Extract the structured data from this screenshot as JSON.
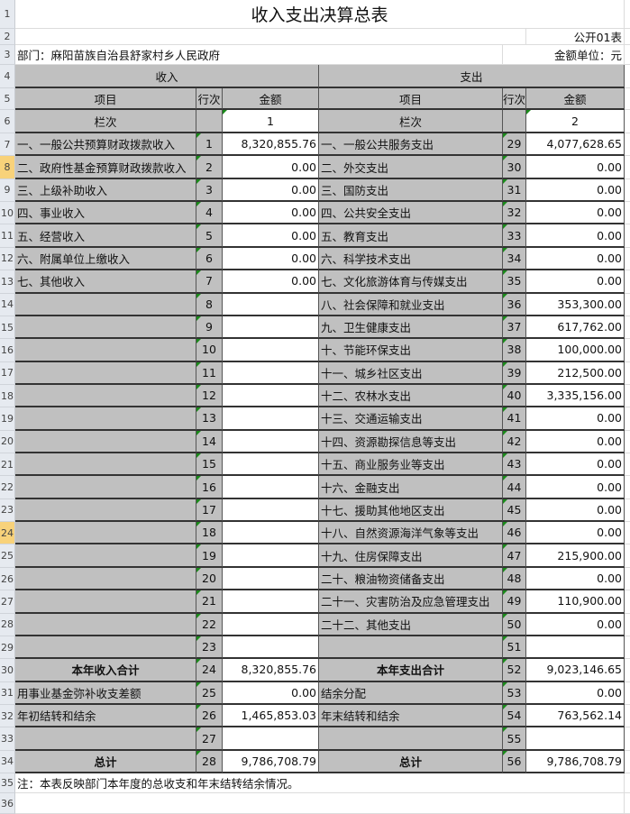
{
  "title": "收入支出决算总表",
  "form_code": "公开01表",
  "department": "部门：麻阳苗族自治县舒家村乡人民政府",
  "unit": "金额单位：元",
  "headers": {
    "income": "收入",
    "expense": "支出",
    "item": "项目",
    "line": "行次",
    "amount": "金额",
    "column": "栏次",
    "col1": "1",
    "col2": "2"
  },
  "selected_rows": [
    8,
    24
  ],
  "rows": [
    {
      "r": 7,
      "inc": [
        "一、一般公共预算财政拨款收入",
        "1",
        "8,320,855.76"
      ],
      "exp": [
        "一、一般公共服务支出",
        "29",
        "4,077,628.65"
      ]
    },
    {
      "r": 8,
      "inc": [
        "二、政府性基金预算财政拨款收入",
        "2",
        "0.00"
      ],
      "exp": [
        "二、外交支出",
        "30",
        "0.00"
      ]
    },
    {
      "r": 9,
      "inc": [
        "三、上级补助收入",
        "3",
        "0.00"
      ],
      "exp": [
        "三、国防支出",
        "31",
        "0.00"
      ]
    },
    {
      "r": 10,
      "inc": [
        "四、事业收入",
        "4",
        "0.00"
      ],
      "exp": [
        "四、公共安全支出",
        "32",
        "0.00"
      ]
    },
    {
      "r": 11,
      "inc": [
        "五、经营收入",
        "5",
        "0.00"
      ],
      "exp": [
        "五、教育支出",
        "33",
        "0.00"
      ]
    },
    {
      "r": 12,
      "inc": [
        "六、附属单位上缴收入",
        "6",
        "0.00"
      ],
      "exp": [
        "六、科学技术支出",
        "34",
        "0.00"
      ]
    },
    {
      "r": 13,
      "inc": [
        "七、其他收入",
        "7",
        "0.00"
      ],
      "exp": [
        "七、文化旅游体育与传媒支出",
        "35",
        "0.00"
      ]
    },
    {
      "r": 14,
      "inc": [
        "",
        "8",
        ""
      ],
      "exp": [
        "八、社会保障和就业支出",
        "36",
        "353,300.00"
      ]
    },
    {
      "r": 15,
      "inc": [
        "",
        "9",
        ""
      ],
      "exp": [
        "九、卫生健康支出",
        "37",
        "617,762.00"
      ]
    },
    {
      "r": 16,
      "inc": [
        "",
        "10",
        ""
      ],
      "exp": [
        "十、节能环保支出",
        "38",
        "100,000.00"
      ]
    },
    {
      "r": 17,
      "inc": [
        "",
        "11",
        ""
      ],
      "exp": [
        "十一、城乡社区支出",
        "39",
        "212,500.00"
      ]
    },
    {
      "r": 18,
      "inc": [
        "",
        "12",
        ""
      ],
      "exp": [
        "十二、农林水支出",
        "40",
        "3,335,156.00"
      ]
    },
    {
      "r": 19,
      "inc": [
        "",
        "13",
        ""
      ],
      "exp": [
        "十三、交通运输支出",
        "41",
        "0.00"
      ]
    },
    {
      "r": 20,
      "inc": [
        "",
        "14",
        ""
      ],
      "exp": [
        "十四、资源勘探信息等支出",
        "42",
        "0.00"
      ]
    },
    {
      "r": 21,
      "inc": [
        "",
        "15",
        ""
      ],
      "exp": [
        "十五、商业服务业等支出",
        "43",
        "0.00"
      ]
    },
    {
      "r": 22,
      "inc": [
        "",
        "16",
        ""
      ],
      "exp": [
        "十六、金融支出",
        "44",
        "0.00"
      ]
    },
    {
      "r": 23,
      "inc": [
        "",
        "17",
        ""
      ],
      "exp": [
        "十七、援助其他地区支出",
        "45",
        "0.00"
      ]
    },
    {
      "r": 24,
      "inc": [
        "",
        "18",
        ""
      ],
      "exp": [
        "十八、自然资源海洋气象等支出",
        "46",
        "0.00"
      ]
    },
    {
      "r": 25,
      "inc": [
        "",
        "19",
        ""
      ],
      "exp": [
        "十九、住房保障支出",
        "47",
        "215,900.00"
      ]
    },
    {
      "r": 26,
      "inc": [
        "",
        "20",
        ""
      ],
      "exp": [
        "二十、粮油物资储备支出",
        "48",
        "0.00"
      ]
    },
    {
      "r": 27,
      "inc": [
        "",
        "21",
        ""
      ],
      "exp": [
        "二十一、灾害防治及应急管理支出",
        "49",
        "110,900.00"
      ]
    },
    {
      "r": 28,
      "inc": [
        "",
        "22",
        ""
      ],
      "exp": [
        "二十二、其他支出",
        "50",
        "0.00"
      ]
    },
    {
      "r": 29,
      "inc": [
        "",
        "23",
        ""
      ],
      "exp": [
        "",
        "51",
        ""
      ]
    },
    {
      "r": 30,
      "total": true,
      "inc": [
        "本年收入合计",
        "24",
        "8,320,855.76"
      ],
      "exp": [
        "本年支出合计",
        "52",
        "9,023,146.65"
      ]
    },
    {
      "r": 31,
      "inc": [
        "用事业基金弥补收支差额",
        "25",
        "0.00"
      ],
      "exp": [
        "结余分配",
        "53",
        "0.00"
      ]
    },
    {
      "r": 32,
      "inc": [
        "年初结转和结余",
        "26",
        "1,465,853.03"
      ],
      "exp": [
        "年末结转和结余",
        "54",
        "763,562.14"
      ]
    },
    {
      "r": 33,
      "inc": [
        "",
        "27",
        ""
      ],
      "exp": [
        "",
        "55",
        ""
      ]
    },
    {
      "r": 34,
      "total": true,
      "inc": [
        "总计",
        "28",
        "9,786,708.79"
      ],
      "exp": [
        "总计",
        "56",
        "9,786,708.79"
      ]
    }
  ],
  "note": "注：本表反映部门本年度的总收支和年末结转结余情况。",
  "colors": {
    "header_fill": "#c0c0c0",
    "row_header": "#e6eaf0",
    "selected_row_header": "#f8d27a",
    "indicator": "#1a8a1a"
  }
}
